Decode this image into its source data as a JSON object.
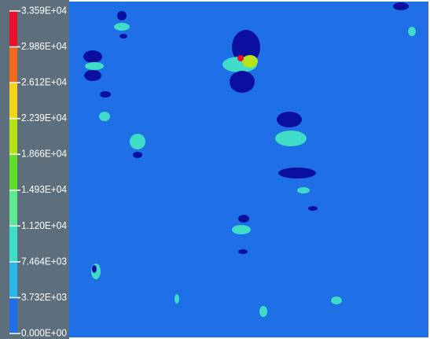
{
  "legend": {
    "labels": [
      "3.359E+04",
      "2.986E+04",
      "2.612E+04",
      "2.239E+04",
      "1.866E+04",
      "1.493E+04",
      "1.120E+04",
      "7.464E+03",
      "3.732E+03",
      "0.000E+00"
    ],
    "colors": [
      "#e8102a",
      "#f06a1c",
      "#f2d21a",
      "#b6e21a",
      "#5ee02a",
      "#5fe890",
      "#3fdcc8",
      "#2ab4e8",
      "#1f6fe6",
      "#0a0f9e"
    ]
  }
}
